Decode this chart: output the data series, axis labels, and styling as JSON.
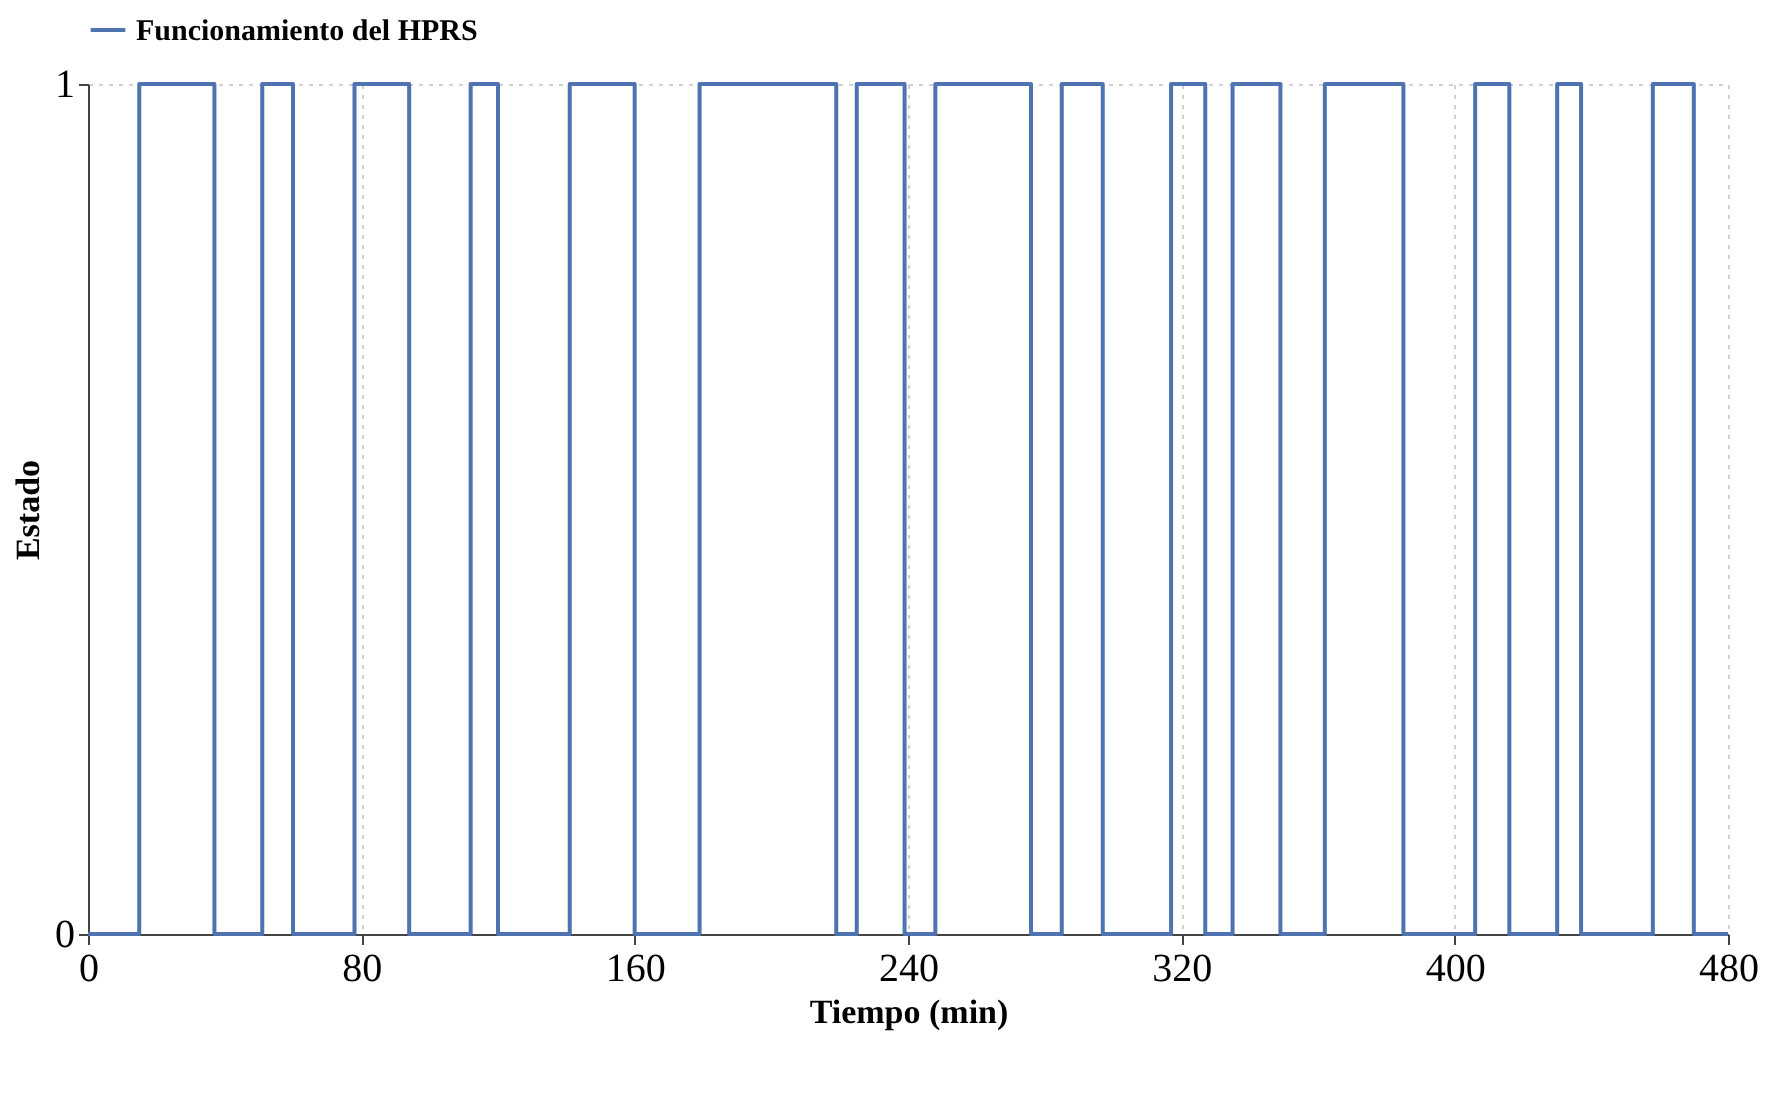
{
  "chart_data": {
    "type": "step",
    "xlabel": "Tiempo (min)",
    "ylabel": "Estado",
    "x": [
      0,
      15,
      37,
      51,
      60,
      78,
      94,
      112,
      120,
      141,
      160,
      179,
      219,
      225,
      239,
      248,
      276,
      285,
      297,
      317,
      327,
      335,
      349,
      362,
      385,
      406,
      416,
      430,
      437,
      458,
      470,
      480
    ],
    "series": [
      {
        "name": "Funcionamiento del HPRS",
        "color": "#4f73b0",
        "values": [
          0,
          1,
          0,
          1,
          0,
          1,
          0,
          1,
          0,
          1,
          0,
          1,
          0,
          1,
          0,
          1,
          0,
          1,
          0,
          1,
          0,
          1,
          0,
          1,
          0,
          1,
          0,
          1,
          0,
          1,
          0,
          0
        ]
      }
    ],
    "xlim": [
      0,
      480
    ],
    "xticks": [
      0,
      80,
      160,
      240,
      320,
      400,
      480
    ],
    "ylim": [
      0,
      1
    ],
    "yticks": [
      0,
      1
    ],
    "grid": true,
    "legend": "top",
    "line_style": "solid",
    "marker": "none"
  }
}
